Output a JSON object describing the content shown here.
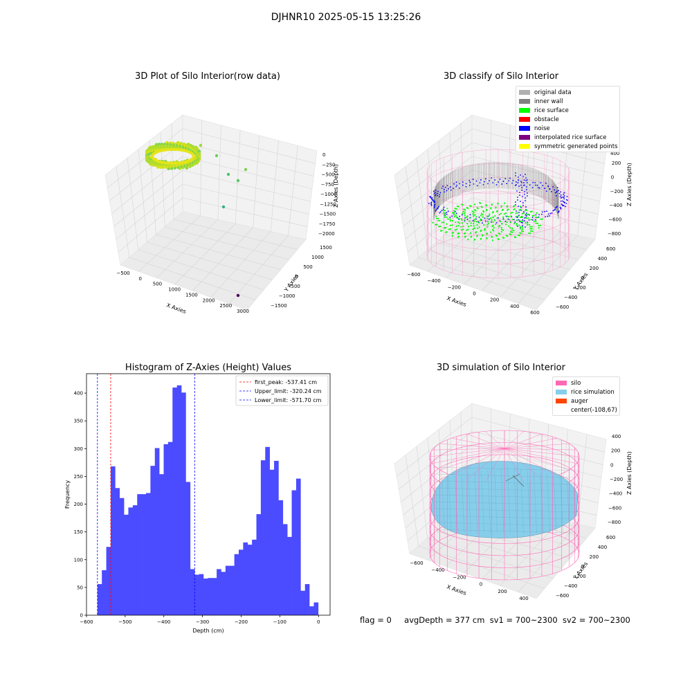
{
  "suptitle": "DJHNR10 2025-05-15 13:25:26",
  "colors": {
    "hist_bar": "#4b4bff",
    "peak_line": "#ff0000",
    "limit_line": "#0000ff",
    "silo": "#ff69b4",
    "rice_sim": "#87ceeb",
    "auger": "#ff4500",
    "original": "#b0b0b0",
    "inner_wall": "#808080",
    "rice_surface": "#00ff00",
    "obstacle": "#ff0000",
    "noise": "#0000ff",
    "interpolated": "#800080",
    "symmetric": "#ffff00"
  },
  "plot1": {
    "title": "3D Plot of Silo Interior(row data)",
    "xlabel": "X Axies",
    "ylabel": "Y Axies",
    "zlabel": "Z Axies (Depth)",
    "xticks": [
      "−500",
      "0",
      "500",
      "1000",
      "1500",
      "2000",
      "2500",
      "3000"
    ],
    "yticks": [
      "−1500",
      "−1000",
      "−500",
      "0",
      "500",
      "1000",
      "1500"
    ],
    "zticks": [
      "0",
      "−250",
      "−500",
      "−750",
      "−1000",
      "−1250",
      "−1500",
      "−1750",
      "−2000"
    ]
  },
  "plot2": {
    "title": "3D classify of Silo Interior",
    "xlabel": "X Axies",
    "ylabel": "Y Axies",
    "zlabel": "Z Axies (Depth)",
    "xticks": [
      "−600",
      "−400",
      "−200",
      "0",
      "200",
      "400",
      "600"
    ],
    "yticks": [
      "−600",
      "−400",
      "−200",
      "0",
      "200",
      "400",
      "600"
    ],
    "zticks": [
      "200",
      "0",
      "−200",
      "−400",
      "−600",
      "−800"
    ],
    "zticks_top": "400",
    "legend": [
      {
        "label": "original data",
        "color": "#b0b0b0"
      },
      {
        "label": "inner wall",
        "color": "#808080"
      },
      {
        "label": "rice surface",
        "color": "#00ff00"
      },
      {
        "label": "obstacle",
        "color": "#ff0000"
      },
      {
        "label": "noise",
        "color": "#0000ff"
      },
      {
        "label": "interpolated rice surface",
        "color": "#800080"
      },
      {
        "label": "symmetric generated points",
        "color": "#ffff00"
      }
    ]
  },
  "plot4": {
    "title": "3D simulation of Silo Interior",
    "xlabel": "X Axies",
    "ylabel": "Y Axies",
    "zlabel": "Z Axies (Depth)",
    "xticks": [
      "−600",
      "−400",
      "−200",
      "0",
      "200",
      "400"
    ],
    "yticks": [
      "−600",
      "−400",
      "−200",
      "0",
      "200",
      "400",
      "600"
    ],
    "zticks": [
      "400",
      "200",
      "0",
      "−200",
      "−400",
      "−600",
      "−800"
    ],
    "legend": [
      {
        "label": "silo",
        "color": "#ff69b4"
      },
      {
        "label": "rice simulation",
        "color": "#87ceeb"
      },
      {
        "label": "auger",
        "color": "#ff4500"
      },
      {
        "label": "center(-108,67)",
        "color": ""
      }
    ]
  },
  "footer": {
    "flag": "flag = 0",
    "avg": "avgDepth = 377 cm",
    "sv1": "sv1 = 700~2300",
    "sv2": "sv2 = 700~2300"
  },
  "chart_data": [
    {
      "type": "bar",
      "title": "Histogram of Z-Axies (Height) Values",
      "xlabel": "Depth (cm)",
      "ylabel": "Frequency",
      "xlim": [
        -600,
        30
      ],
      "ylim": [
        0,
        435
      ],
      "xticks": [
        -600,
        -500,
        -400,
        -300,
        -200,
        -100,
        0
      ],
      "yticks": [
        0,
        50,
        100,
        150,
        200,
        250,
        300,
        350,
        400
      ],
      "bin_start": -571.7,
      "bin_width": 11.42,
      "values": [
        56,
        81,
        123,
        268,
        229,
        211,
        181,
        194,
        198,
        218,
        218,
        220,
        269,
        301,
        254,
        308,
        312,
        410,
        414,
        401,
        240,
        83,
        73,
        74,
        66,
        67,
        67,
        83,
        78,
        89,
        89,
        110,
        118,
        131,
        127,
        136,
        182,
        279,
        303,
        262,
        278,
        207,
        164,
        141,
        225,
        246,
        44,
        56,
        16,
        23
      ],
      "vlines": [
        {
          "label": "first_peak: -537.41 cm",
          "x": -537.41,
          "color": "#ff0000"
        },
        {
          "label": "Upper_limit: -320.24 cm",
          "x": -320.24,
          "color": "#0000ff"
        },
        {
          "label": "Lower_limit: -571.70 cm",
          "x": -571.7,
          "color": "#0000ff"
        }
      ]
    }
  ]
}
